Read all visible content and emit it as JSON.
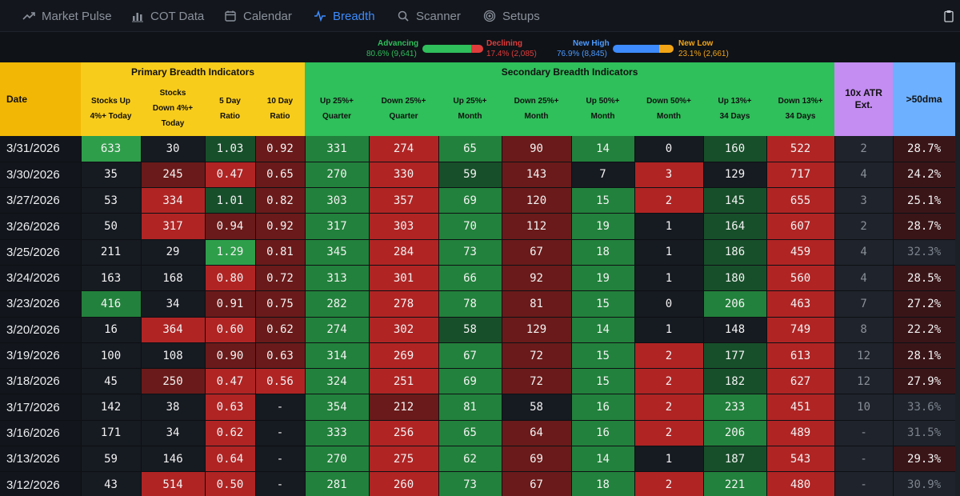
{
  "nav": {
    "items": [
      {
        "label": "Market Pulse",
        "icon": "trend-line-icon",
        "active": false
      },
      {
        "label": "COT Data",
        "icon": "bar-chart-icon",
        "active": false
      },
      {
        "label": "Calendar",
        "icon": "calendar-icon",
        "active": false
      },
      {
        "label": "Breadth",
        "icon": "pulse-icon",
        "active": true
      },
      {
        "label": "Scanner",
        "icon": "search-icon",
        "active": false
      },
      {
        "label": "Setups",
        "icon": "target-icon",
        "active": false
      }
    ],
    "right_icon": "clipboard-icon"
  },
  "legend": {
    "advancing": {
      "label": "Advancing",
      "value": "80.6% (9,641)",
      "fraction": 0.806
    },
    "declining": {
      "label": "Declining",
      "value": "17.4% (2,085)",
      "fraction": 0.174
    },
    "new_high": {
      "label": "New High",
      "value": "76.9% (8,845)",
      "fraction": 0.769
    },
    "new_low": {
      "label": "New Low",
      "value": "23.1% (2,661)",
      "fraction": 0.231
    }
  },
  "table": {
    "date_header": "Date",
    "groups": {
      "primary": "Primary Breadth Indicators",
      "secondary": "Secondary Breadth Indicators",
      "atr": "10x ATR Ext.",
      "dma": ">50dma"
    },
    "columns": {
      "c1": "Stocks Up 4%+ Today",
      "c2": "Stocks Down 4%+ Today",
      "c3": "5 Day Ratio",
      "c4": "10 Day Ratio",
      "c5": "Up 25%+ Quarter",
      "c6": "Down 25%+ Quarter",
      "c7": "Up 25%+ Month",
      "c8": "Down 25%+ Month",
      "c9": "Up 50%+ Month",
      "c10": "Down 50%+ Month",
      "c11": "Up 13%+ 34 Days",
      "c12": "Down 13%+ 34 Days"
    },
    "rows": [
      {
        "date": "3/31/2026",
        "v": [
          "633",
          "30",
          "1.03",
          "0.92",
          "331",
          "274",
          "65",
          "90",
          "14",
          "0",
          "160",
          "522",
          "2",
          "28.7%"
        ],
        "c": [
          "g3",
          "n0",
          "g1",
          "r1",
          "g2",
          "r2",
          "g2",
          "r1",
          "g2",
          "n0",
          "g1",
          "r2",
          "atrc",
          "dmac-dark"
        ]
      },
      {
        "date": "3/30/2026",
        "v": [
          "35",
          "245",
          "0.47",
          "0.65",
          "270",
          "330",
          "59",
          "143",
          "7",
          "3",
          "129",
          "717",
          "4",
          "24.2%"
        ],
        "c": [
          "n0",
          "r1",
          "r2",
          "r1",
          "g2",
          "r2",
          "g1",
          "r1",
          "n0",
          "r2",
          "n0",
          "r2",
          "atrc",
          "dmac-dark"
        ]
      },
      {
        "date": "3/27/2026",
        "v": [
          "53",
          "334",
          "1.01",
          "0.82",
          "303",
          "357",
          "69",
          "120",
          "15",
          "2",
          "145",
          "655",
          "3",
          "25.1%"
        ],
        "c": [
          "n0",
          "r2",
          "g1",
          "r1",
          "g2",
          "r2",
          "g2",
          "r1",
          "g2",
          "r2",
          "g1",
          "r2",
          "atrc",
          "dmac-dark"
        ]
      },
      {
        "date": "3/26/2026",
        "v": [
          "50",
          "317",
          "0.94",
          "0.92",
          "317",
          "303",
          "70",
          "112",
          "19",
          "1",
          "164",
          "607",
          "2",
          "28.7%"
        ],
        "c": [
          "n0",
          "r2",
          "r1",
          "r1",
          "g2",
          "r2",
          "g2",
          "r1",
          "g2",
          "n0",
          "g1",
          "r2",
          "atrc",
          "dmac-dark"
        ]
      },
      {
        "date": "3/25/2026",
        "v": [
          "211",
          "29",
          "1.29",
          "0.81",
          "345",
          "284",
          "73",
          "67",
          "18",
          "1",
          "186",
          "459",
          "4",
          "32.3%"
        ],
        "c": [
          "n0",
          "n0",
          "g3",
          "r1",
          "g2",
          "r2",
          "g2",
          "r1",
          "g2",
          "n0",
          "g1",
          "r2",
          "atrc",
          "dmac-mid"
        ]
      },
      {
        "date": "3/24/2026",
        "v": [
          "163",
          "168",
          "0.80",
          "0.72",
          "313",
          "301",
          "66",
          "92",
          "19",
          "1",
          "180",
          "560",
          "4",
          "28.5%"
        ],
        "c": [
          "n0",
          "n0",
          "r2",
          "r1",
          "g2",
          "r2",
          "g2",
          "r1",
          "g2",
          "n0",
          "g1",
          "r2",
          "atrc",
          "dmac-dark"
        ]
      },
      {
        "date": "3/23/2026",
        "v": [
          "416",
          "34",
          "0.91",
          "0.75",
          "282",
          "278",
          "78",
          "81",
          "15",
          "0",
          "206",
          "463",
          "7",
          "27.2%"
        ],
        "c": [
          "g2",
          "n0",
          "r1",
          "r1",
          "g2",
          "r2",
          "g2",
          "r1",
          "g2",
          "n0",
          "g2",
          "r2",
          "atrc",
          "dmac-dark"
        ]
      },
      {
        "date": "3/20/2026",
        "v": [
          "16",
          "364",
          "0.60",
          "0.62",
          "274",
          "302",
          "58",
          "129",
          "14",
          "1",
          "148",
          "749",
          "8",
          "22.2%"
        ],
        "c": [
          "n0",
          "r2",
          "r2",
          "r1",
          "g2",
          "r2",
          "g1",
          "r1",
          "g2",
          "n0",
          "n0",
          "r2",
          "atrc",
          "dmac-dark"
        ]
      },
      {
        "date": "3/19/2026",
        "v": [
          "100",
          "108",
          "0.90",
          "0.63",
          "314",
          "269",
          "67",
          "72",
          "15",
          "2",
          "177",
          "613",
          "12",
          "28.1%"
        ],
        "c": [
          "n0",
          "n0",
          "r1",
          "r1",
          "g2",
          "r2",
          "g2",
          "r1",
          "g2",
          "r2",
          "g1",
          "r2",
          "atrc",
          "dmac-dark"
        ]
      },
      {
        "date": "3/18/2026",
        "v": [
          "45",
          "250",
          "0.47",
          "0.56",
          "324",
          "251",
          "69",
          "72",
          "15",
          "2",
          "182",
          "627",
          "12",
          "27.9%"
        ],
        "c": [
          "n0",
          "r1",
          "r2",
          "r2",
          "g2",
          "r2",
          "g2",
          "r1",
          "g2",
          "r2",
          "g1",
          "r2",
          "atrc",
          "dmac-dark"
        ]
      },
      {
        "date": "3/17/2026",
        "v": [
          "142",
          "38",
          "0.63",
          "-",
          "354",
          "212",
          "81",
          "58",
          "16",
          "2",
          "233",
          "451",
          "10",
          "33.6%"
        ],
        "c": [
          "n0",
          "n0",
          "r2",
          "n0",
          "g2",
          "r1",
          "g2",
          "n0",
          "g2",
          "r2",
          "g2",
          "r2",
          "atrc",
          "dmac-mid"
        ]
      },
      {
        "date": "3/16/2026",
        "v": [
          "171",
          "34",
          "0.62",
          "-",
          "333",
          "256",
          "65",
          "64",
          "16",
          "2",
          "206",
          "489",
          "-",
          "31.5%"
        ],
        "c": [
          "n0",
          "n0",
          "r2",
          "n0",
          "g2",
          "r2",
          "g2",
          "r1",
          "g2",
          "r2",
          "g2",
          "r2",
          "atrc",
          "dmac-mid"
        ]
      },
      {
        "date": "3/13/2026",
        "v": [
          "59",
          "146",
          "0.64",
          "-",
          "270",
          "275",
          "62",
          "69",
          "14",
          "1",
          "187",
          "543",
          "-",
          "29.3%"
        ],
        "c": [
          "n0",
          "n0",
          "r2",
          "n0",
          "g2",
          "r2",
          "g2",
          "r1",
          "g2",
          "n0",
          "g1",
          "r2",
          "atrc",
          "dmac-dark"
        ]
      },
      {
        "date": "3/12/2026",
        "v": [
          "43",
          "514",
          "0.50",
          "-",
          "281",
          "260",
          "73",
          "67",
          "18",
          "2",
          "221",
          "480",
          "-",
          "30.9%"
        ],
        "c": [
          "n0",
          "r2",
          "r2",
          "n0",
          "g2",
          "r2",
          "g2",
          "r1",
          "g2",
          "r2",
          "g2",
          "r2",
          "atrc",
          "dmac-mid"
        ]
      }
    ]
  }
}
